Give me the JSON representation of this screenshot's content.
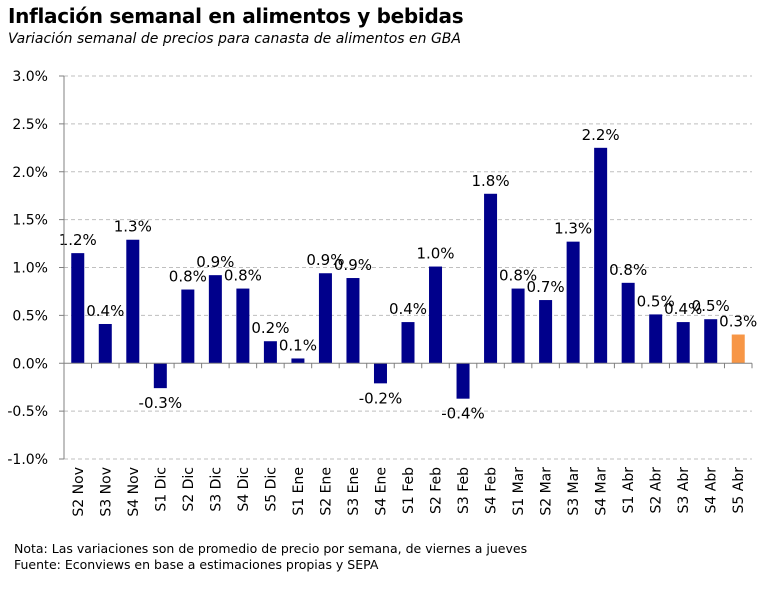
{
  "chart_data": {
    "type": "bar",
    "title": "Inflación semanal en alimentos y bebidas",
    "subtitle": "Variación semanal de precios para canasta de alimentos en GBA",
    "xlabel": "",
    "ylabel": "",
    "ylim": [
      -1.0,
      3.0
    ],
    "yticks": [
      "-1.0%",
      "-0.5%",
      "0.0%",
      "0.5%",
      "1.0%",
      "1.5%",
      "2.0%",
      "2.5%",
      "3.0%"
    ],
    "ytick_values": [
      -1.0,
      -0.5,
      0.0,
      0.5,
      1.0,
      1.5,
      2.0,
      2.5,
      3.0
    ],
    "grid": true,
    "categories": [
      "S2 Nov",
      "S3 Nov",
      "S4 Nov",
      "S1 Dic",
      "S2 Dic",
      "S3 Dic",
      "S4 Dic",
      "S5 Dic",
      "S1 Ene",
      "S2 Ene",
      "S3 Ene",
      "S4 Ene",
      "S1 Feb",
      "S2 Feb",
      "S3 Feb",
      "S4 Feb",
      "S1 Mar",
      "S2 Mar",
      "S3 Mar",
      "S4 Mar",
      "S1 Abr",
      "S2 Abr",
      "S3 Abr",
      "S4 Abr",
      "S5 Abr"
    ],
    "values": [
      1.15,
      0.41,
      1.29,
      -0.26,
      0.77,
      0.92,
      0.78,
      0.23,
      0.05,
      0.94,
      0.89,
      -0.21,
      0.43,
      1.01,
      -0.37,
      1.77,
      0.78,
      0.66,
      1.27,
      2.25,
      0.84,
      0.51,
      0.43,
      0.46,
      0.3
    ],
    "labels": [
      "1.2%",
      "0.4%",
      "1.3%",
      "-0.3%",
      "0.8%",
      "0.9%",
      "0.8%",
      "0.2%",
      "0.1%",
      "0.9%",
      "0.9%",
      "-0.2%",
      "0.4%",
      "1.0%",
      "-0.4%",
      "1.8%",
      "0.8%",
      "0.7%",
      "1.3%",
      "2.2%",
      "0.8%",
      "0.5%",
      "0.4%",
      "0.5%",
      "0.3%"
    ],
    "colors": {
      "bar": "#00008B",
      "highlight": "#F79646",
      "grid": "#BFBFBF",
      "axis": "#808080"
    },
    "highlight_index": 24
  },
  "notes": {
    "nota": "Nota: Las variaciones son de promedio de precio por semana, de viernes a jueves",
    "fuente": "Fuente: Econviews en base a estimaciones propias  y SEPA"
  }
}
